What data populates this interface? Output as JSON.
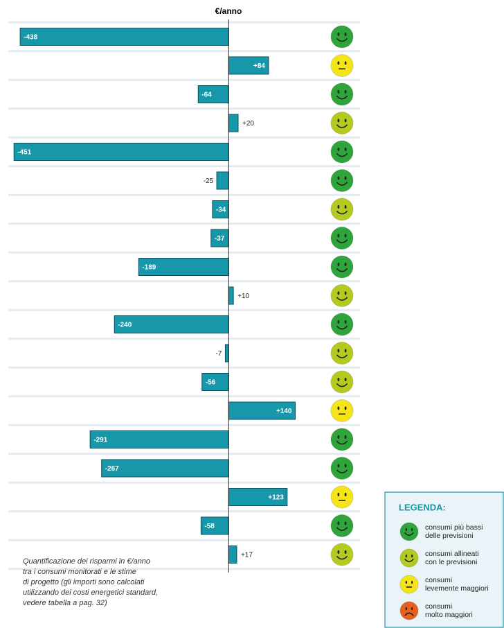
{
  "chart_data": {
    "type": "bar",
    "title": "€/anno",
    "values": [
      -438,
      84,
      -64,
      20,
      -451,
      -25,
      -34,
      -37,
      -189,
      10,
      -240,
      -7,
      -56,
      140,
      -291,
      -267,
      123,
      -58,
      17
    ],
    "value_labels": [
      "-438",
      "+84",
      "-64",
      "+20",
      "-451",
      "-25",
      "-34",
      "-37",
      "-189",
      "+10",
      "-240",
      "-7",
      "-56",
      "+140",
      "-291",
      "-267",
      "+123",
      "-58",
      "+17"
    ],
    "ratings": [
      0,
      2,
      0,
      1,
      0,
      0,
      1,
      0,
      0,
      1,
      0,
      1,
      1,
      2,
      0,
      0,
      2,
      0,
      1
    ],
    "color": "#1797aa",
    "xlim": [
      -460,
      276
    ],
    "caption": [
      "Quantificazione dei risparmi in €/anno",
      "tra i consumi monitorati e le stime",
      "di progetto (gli importi sono calcolati",
      "utilizzando dei costi energetici standard,",
      "vedere tabella a pag. 32)"
    ],
    "legend": {
      "title": "LEGENDA:",
      "items": [
        {
          "label": [
            "consumi più bassi",
            "delle previsioni"
          ],
          "color": "#2ea53a"
        },
        {
          "label": [
            "consumi allineati",
            "con le previsioni"
          ],
          "color": "#b3cb1f"
        },
        {
          "label": [
            "consumi",
            "levemente maggiori"
          ],
          "color": "#f4e418"
        },
        {
          "label": [
            "consumi",
            "molto maggiori"
          ],
          "color": "#e5611d"
        }
      ]
    }
  }
}
